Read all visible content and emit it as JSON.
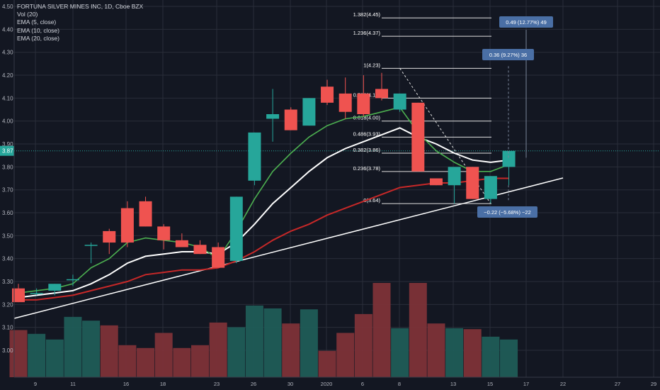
{
  "chart_data": {
    "type": "candlestick",
    "title": "FORTUNA SILVER MINES INC, 1D, Cboe BZX",
    "indicators": [
      "Vol (20)",
      "EMA (5, close)",
      "EMA (10, close)",
      "EMA (20, close)"
    ],
    "y_ticks": [
      "4.50",
      "4.40",
      "4.30",
      "4.20",
      "4.10",
      "4.00",
      "3.90",
      "3.80",
      "3.70",
      "3.60",
      "3.50",
      "3.40",
      "3.30",
      "3.20",
      "3.10",
      "3.00"
    ],
    "current_price": "3.87",
    "x_ticks": [
      "9",
      "11",
      "16",
      "18",
      "23",
      "26",
      "30",
      "2020",
      "6",
      "8",
      "13",
      "15",
      "17",
      "22",
      "27",
      "29"
    ],
    "candles": [
      {
        "o": 3.27,
        "h": 3.29,
        "l": 3.21,
        "c": 3.21
      },
      {
        "o": 3.25,
        "h": 3.27,
        "l": 3.24,
        "c": 3.25
      },
      {
        "o": 3.26,
        "h": 3.29,
        "l": 3.24,
        "c": 3.29
      },
      {
        "o": 3.31,
        "h": 3.33,
        "l": 3.28,
        "c": 3.31
      },
      {
        "o": 3.46,
        "h": 3.47,
        "l": 3.38,
        "c": 3.46
      },
      {
        "o": 3.52,
        "h": 3.53,
        "l": 3.42,
        "c": 3.47
      },
      {
        "o": 3.62,
        "h": 3.65,
        "l": 3.45,
        "c": 3.47
      },
      {
        "o": 3.65,
        "h": 3.67,
        "l": 3.54,
        "c": 3.54
      },
      {
        "o": 3.54,
        "h": 3.55,
        "l": 3.44,
        "c": 3.48
      },
      {
        "o": 3.48,
        "h": 3.51,
        "l": 3.45,
        "c": 3.45
      },
      {
        "o": 3.46,
        "h": 3.48,
        "l": 3.42,
        "c": 3.42
      },
      {
        "o": 3.45,
        "h": 3.47,
        "l": 3.36,
        "c": 3.36
      },
      {
        "o": 3.39,
        "h": 3.67,
        "l": 3.38,
        "c": 3.67
      },
      {
        "o": 3.74,
        "h": 3.95,
        "l": 3.72,
        "c": 3.95
      },
      {
        "o": 4.01,
        "h": 4.14,
        "l": 3.91,
        "c": 4.03
      },
      {
        "o": 4.05,
        "h": 4.06,
        "l": 3.96,
        "c": 3.96
      },
      {
        "o": 3.98,
        "h": 4.1,
        "l": 3.98,
        "c": 4.1
      },
      {
        "o": 4.15,
        "h": 4.18,
        "l": 4.07,
        "c": 4.08
      },
      {
        "o": 4.12,
        "h": 4.19,
        "l": 4.01,
        "c": 4.04
      },
      {
        "o": 4.12,
        "h": 4.2,
        "l": 4.02,
        "c": 4.03
      },
      {
        "o": 4.14,
        "h": 4.21,
        "l": 4.09,
        "c": 4.1
      },
      {
        "o": 4.05,
        "h": 4.12,
        "l": 4.04,
        "c": 4.12
      },
      {
        "o": 4.08,
        "h": 4.08,
        "l": 3.78,
        "c": 3.78
      },
      {
        "o": 3.75,
        "h": 3.75,
        "l": 3.72,
        "c": 3.72
      },
      {
        "o": 3.72,
        "h": 3.79,
        "l": 3.64,
        "c": 3.8
      },
      {
        "o": 3.8,
        "h": 3.8,
        "l": 3.66,
        "c": 3.66
      },
      {
        "o": 3.66,
        "h": 3.76,
        "l": 3.64,
        "c": 3.76
      },
      {
        "o": 3.8,
        "h": 3.87,
        "l": 3.72,
        "c": 3.87
      }
    ],
    "volume_rel": [
      0.5,
      0.46,
      0.4,
      0.64,
      0.6,
      0.55,
      0.34,
      0.31,
      0.47,
      0.31,
      0.34,
      0.58,
      0.53,
      0.76,
      0.73,
      0.57,
      0.72,
      0.28,
      0.47,
      0.67,
      1.0,
      0.52,
      1.0,
      0.57,
      0.52,
      0.51,
      0.43,
      0.4
    ],
    "ema5": [
      3.25,
      3.26,
      3.27,
      3.29,
      3.36,
      3.4,
      3.47,
      3.49,
      3.48,
      3.47,
      3.45,
      3.4,
      3.52,
      3.66,
      3.78,
      3.86,
      3.93,
      3.98,
      4.01,
      4.02,
      4.04,
      4.06,
      3.95,
      3.87,
      3.82,
      3.78,
      3.78,
      3.81
    ],
    "ema10": [
      3.23,
      3.24,
      3.25,
      3.26,
      3.29,
      3.33,
      3.38,
      3.41,
      3.42,
      3.43,
      3.43,
      3.42,
      3.47,
      3.55,
      3.64,
      3.71,
      3.78,
      3.84,
      3.88,
      3.91,
      3.94,
      3.97,
      3.93,
      3.9,
      3.86,
      3.83,
      3.82,
      3.83
    ],
    "ema20": [
      3.22,
      3.22,
      3.23,
      3.24,
      3.26,
      3.28,
      3.3,
      3.33,
      3.34,
      3.35,
      3.35,
      3.36,
      3.39,
      3.43,
      3.48,
      3.52,
      3.55,
      3.59,
      3.62,
      3.65,
      3.68,
      3.71,
      3.72,
      3.73,
      3.73,
      3.74,
      3.75,
      3.75
    ],
    "fib_levels": [
      {
        "label": "1.382(4.45)",
        "v": 4.45
      },
      {
        "label": "1.236(4.37)",
        "v": 4.37
      },
      {
        "label": "1(4.23)",
        "v": 4.23
      },
      {
        "label": "0.786(4.10)",
        "v": 4.1
      },
      {
        "label": "0.618(4.00)",
        "v": 4.0
      },
      {
        "label": "0.486(3.93)",
        "v": 3.93
      },
      {
        "label": "0.382(3.86)",
        "v": 3.86
      },
      {
        "label": "0.236(3.78)",
        "v": 3.78
      },
      {
        "label": "0(3.64)",
        "v": 3.64
      }
    ],
    "measure_labels": [
      "0.49 (12.77%) 49",
      "0.36 (9.27%) 36",
      "−0.22 (−5.68%) −22"
    ],
    "colors": {
      "up": "#26a69a",
      "down": "#ef5350",
      "ema5": "#4caf50",
      "ema10": "#ffffff",
      "ema20": "#c62828",
      "background": "#131722",
      "label": "#4a6fa5"
    }
  }
}
